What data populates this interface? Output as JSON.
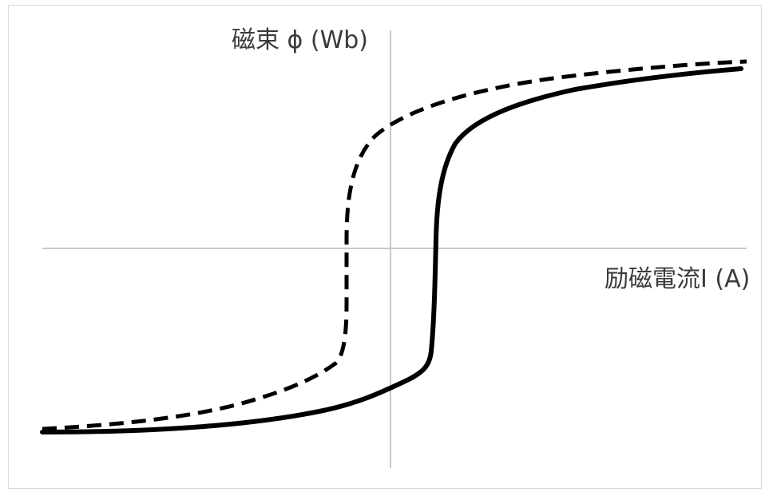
{
  "labels": {
    "y_axis": "磁束 ϕ (Wb)",
    "x_axis": "励磁電流I (A)"
  },
  "curves": [
    {
      "style": "dashed",
      "description": "magnetization curve, upper branch"
    },
    {
      "style": "solid",
      "description": "magnetization curve, lower branch"
    }
  ],
  "colors": {
    "axis": "#c8c8c8",
    "curve": "#000000",
    "label": "#3a3a3a",
    "frame": "#d9d9d9"
  }
}
